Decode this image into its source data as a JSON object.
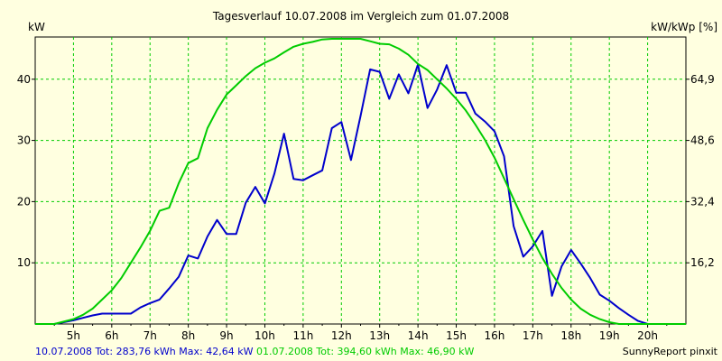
{
  "chart_data": {
    "type": "line",
    "title": "Tagesverlauf 10.07.2008 im Vergleich zum 01.07.2008",
    "ylabel_left": "kW",
    "ylabel_right": "kW/kWp [%]",
    "xlabel": "",
    "x_ticks": [
      "5h",
      "6h",
      "7h",
      "8h",
      "9h",
      "10h",
      "11h",
      "12h",
      "13h",
      "14h",
      "15h",
      "16h",
      "17h",
      "18h",
      "19h",
      "20h"
    ],
    "y_ticks_left": [
      "10",
      "20",
      "30",
      "40"
    ],
    "y_ticks_right": [
      "16,2",
      "32,4",
      "48,6",
      "64,9"
    ],
    "xlim": [
      4,
      21
    ],
    "ylim": [
      0,
      46.9
    ],
    "grid": true,
    "series": [
      {
        "name": "10.07.2008",
        "color": "#0000cc",
        "x": [
          4.0,
          4.5,
          5.0,
          5.25,
          5.5,
          5.75,
          6.0,
          6.25,
          6.5,
          6.75,
          7.0,
          7.25,
          7.5,
          7.75,
          8.0,
          8.25,
          8.5,
          8.75,
          9.0,
          9.25,
          9.5,
          9.75,
          10.0,
          10.25,
          10.5,
          10.75,
          11.0,
          11.25,
          11.5,
          11.75,
          12.0,
          12.25,
          12.5,
          12.75,
          13.0,
          13.25,
          13.5,
          13.75,
          14.0,
          14.25,
          14.5,
          14.75,
          15.0,
          15.25,
          15.5,
          15.75,
          16.0,
          16.25,
          16.5,
          16.75,
          17.0,
          17.25,
          17.5,
          17.75,
          18.0,
          18.25,
          18.5,
          18.75,
          19.0,
          19.25,
          19.5,
          19.75,
          20.0,
          20.25,
          20.5,
          21.0
        ],
        "y": [
          0,
          0,
          0.6,
          1.0,
          1.4,
          1.7,
          1.7,
          1.7,
          1.7,
          2.7,
          3.4,
          4.0,
          5.8,
          7.7,
          11.2,
          10.7,
          14.3,
          17.0,
          14.7,
          14.7,
          19.8,
          22.4,
          19.7,
          24.6,
          31.1,
          23.7,
          23.5,
          24.3,
          25.1,
          32.0,
          33.0,
          26.8,
          34.0,
          41.6,
          41.2,
          36.8,
          40.8,
          37.7,
          42.4,
          35.3,
          38.3,
          42.3,
          37.8,
          37.8,
          34.4,
          33.1,
          31.5,
          27.4,
          16.0,
          11.0,
          12.7,
          15.2,
          4.6,
          9.4,
          12.1,
          9.9,
          7.5,
          4.8,
          3.8,
          2.6,
          1.5,
          0.5,
          0,
          0,
          0,
          0
        ]
      },
      {
        "name": "01.07.2008",
        "color": "#00cc00",
        "x": [
          4.0,
          4.5,
          5.0,
          5.25,
          5.5,
          5.75,
          6.0,
          6.25,
          6.5,
          6.75,
          7.0,
          7.25,
          7.5,
          7.75,
          8.0,
          8.25,
          8.5,
          8.75,
          9.0,
          9.25,
          9.5,
          9.75,
          10.0,
          10.25,
          10.5,
          10.75,
          11.0,
          11.25,
          11.5,
          11.75,
          12.0,
          12.25,
          12.5,
          12.75,
          13.0,
          13.25,
          13.5,
          13.75,
          14.0,
          14.25,
          14.5,
          14.75,
          15.0,
          15.25,
          15.5,
          15.75,
          16.0,
          16.25,
          16.5,
          16.75,
          17.0,
          17.25,
          17.5,
          17.75,
          18.0,
          18.25,
          18.5,
          18.75,
          19.0,
          19.25,
          19.5,
          19.75,
          20.0,
          20.25,
          20.5,
          21.0
        ],
        "y": [
          0,
          0,
          0.8,
          1.5,
          2.5,
          4.0,
          5.5,
          7.5,
          10.0,
          12.5,
          15.2,
          18.5,
          19.0,
          23.0,
          26.3,
          27.1,
          32.0,
          35.0,
          37.5,
          39.0,
          40.5,
          41.8,
          42.7,
          43.4,
          44.4,
          45.3,
          45.8,
          46.1,
          46.5,
          46.6,
          46.6,
          46.6,
          46.6,
          46.2,
          45.8,
          45.7,
          45.0,
          44.0,
          42.5,
          41.5,
          40.0,
          38.5,
          36.8,
          34.9,
          32.6,
          30.1,
          27.2,
          23.8,
          20.4,
          17.0,
          13.8,
          10.8,
          8.2,
          5.9,
          4.0,
          2.5,
          1.5,
          0.8,
          0.3,
          0,
          0,
          0,
          0,
          0,
          0,
          0
        ]
      }
    ]
  },
  "footer": {
    "series1": "10.07.2008 Tot: 283,76 kWh Max: 42,64 kW",
    "series2": "01.07.2008 Tot: 394,60 kWh Max: 46,90 kW",
    "credit": "SunnyReport pinxit"
  }
}
